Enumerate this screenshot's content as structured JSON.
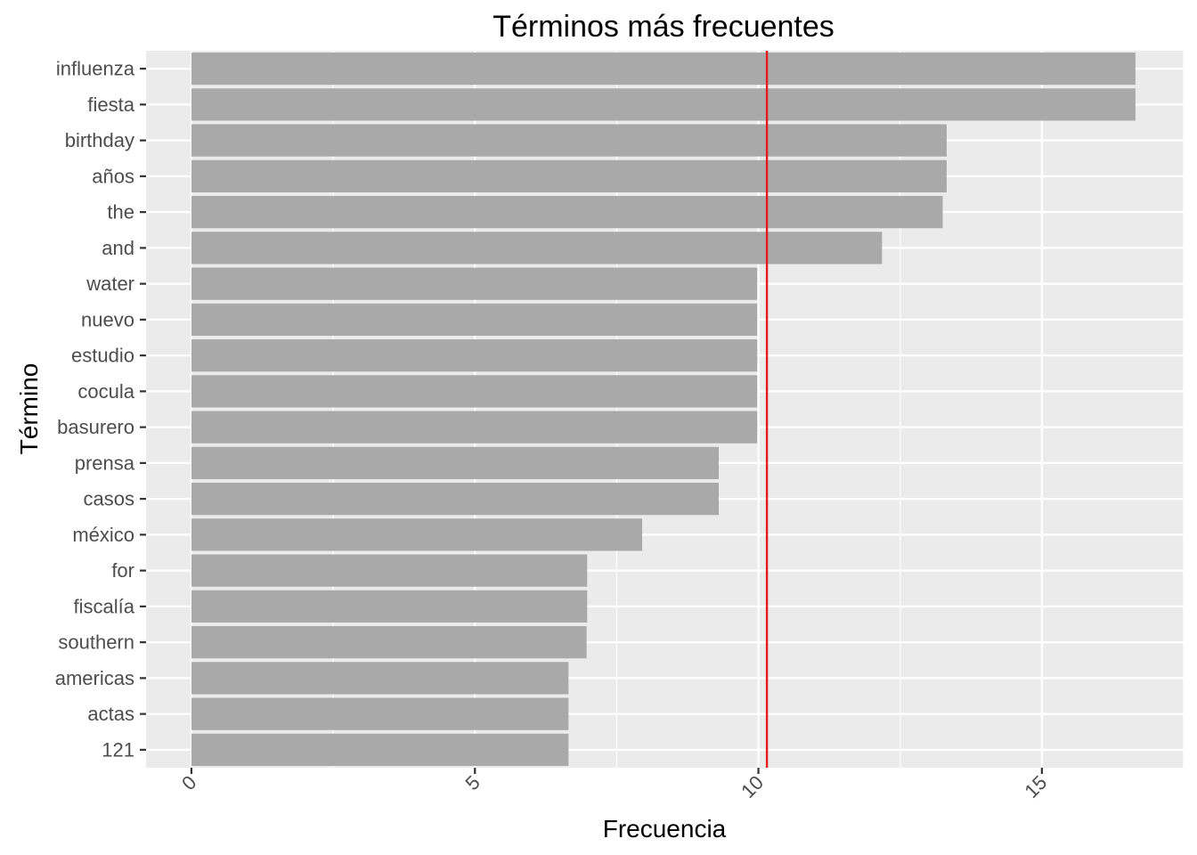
{
  "chart_data": {
    "type": "bar",
    "orientation": "horizontal",
    "title": "Términos más frecuentes",
    "xlabel": "Frecuencia",
    "ylabel": "Término",
    "categories": [
      "influenza",
      "fiesta",
      "birthday",
      "años",
      "the",
      "and",
      "water",
      "nuevo",
      "estudio",
      "cocula",
      "basurero",
      "prensa",
      "casos",
      "méxico",
      "for",
      "fiscalía",
      "southern",
      "americas",
      "actas",
      "121"
    ],
    "values": [
      16.65,
      16.65,
      13.32,
      13.32,
      13.25,
      12.18,
      9.98,
      9.98,
      9.98,
      9.98,
      9.98,
      9.3,
      9.3,
      7.95,
      6.98,
      6.98,
      6.97,
      6.65,
      6.65,
      6.65
    ],
    "xlim": [
      -0.8,
      17.5
    ],
    "xticks": [
      0,
      5,
      10,
      15
    ],
    "xtick_labels": [
      "0",
      "5",
      "10",
      "15"
    ],
    "reference_line": {
      "x": 10.15,
      "color": "#e41a1c"
    },
    "bar_color": "#a9a9a9",
    "panel_color": "#ebebeb",
    "grid": true
  }
}
